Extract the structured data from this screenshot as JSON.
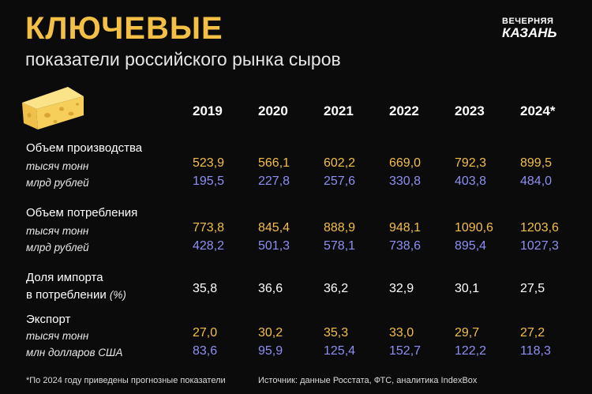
{
  "title": "КЛЮЧЕВЫЕ",
  "subtitle": "показатели российского рынка сыров",
  "logo": {
    "line1": "ВЕЧЕРНЯЯ",
    "line2": "КАЗАНЬ"
  },
  "icon": "cheese-wedge-icon",
  "years": [
    "2019",
    "2020",
    "2021",
    "2022",
    "2023",
    "2024*"
  ],
  "colors": {
    "accent": "#f3bf45",
    "secondary": "#8d8ff3",
    "background": "#0b0b0b"
  },
  "production": {
    "label": "Объем производства",
    "unit1": "тысяч тонн",
    "unit2": "млрд рублей",
    "tons": [
      "523,9",
      "566,1",
      "602,2",
      "669,0",
      "792,3",
      "899,5"
    ],
    "rub": [
      "195,5",
      "227,8",
      "257,6",
      "330,8",
      "403,8",
      "484,0"
    ]
  },
  "consumption": {
    "label": "Объем потребления",
    "unit1": "тысяч тонн",
    "unit2": "млрд рублей",
    "tons": [
      "773,8",
      "845,4",
      "888,9",
      "948,1",
      "1090,6",
      "1203,6"
    ],
    "rub": [
      "428,2",
      "501,3",
      "578,1",
      "738,6",
      "895,4",
      "1027,3"
    ]
  },
  "import_share": {
    "label1": "Доля импорта",
    "label2": "в потреблении",
    "unit": "(%)",
    "values": [
      "35,8",
      "36,6",
      "36,2",
      "32,9",
      "30,1",
      "27,5"
    ]
  },
  "export": {
    "label": "Экспорт",
    "unit1": "тысяч тонн",
    "unit2": "млн долларов США",
    "tons": [
      "27,0",
      "30,2",
      "35,3",
      "33,0",
      "29,7",
      "27,2"
    ],
    "usd": [
      "83,6",
      "95,9",
      "125,4",
      "152,7",
      "122,2",
      "118,3"
    ]
  },
  "footnote": "*По 2024 году приведены прогнозные показатели",
  "source": "Источник: данные Росстата, ФТС, аналитика IndexBox"
}
